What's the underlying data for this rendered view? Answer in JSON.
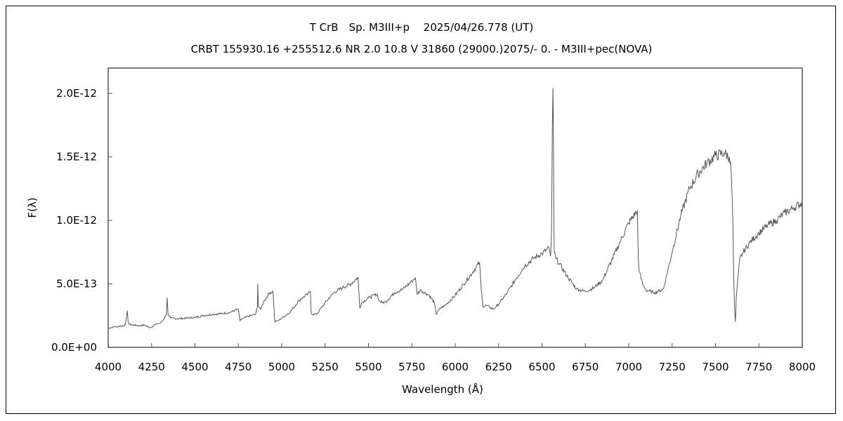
{
  "chart_data": {
    "type": "line",
    "title": "T CrB　Sp. M3III+p　 2025/04/26.778 (UT)",
    "subtitle": "CRBT 155930.16 +255512.6 NR 2.0 10.8 V 31860 (29000.)2075/-  0. - M3III+pec(NOVA)",
    "xlabel": "Wavelength (Å)",
    "ylabel": "F(λ)",
    "xlim": [
      4000,
      8000
    ],
    "ylim": [
      0,
      2.2e-12
    ],
    "x_ticks": [
      4000,
      4250,
      4500,
      4750,
      5000,
      5250,
      5500,
      5750,
      6000,
      6250,
      6500,
      6750,
      7000,
      7250,
      7500,
      7750,
      8000
    ],
    "y_ticks": [
      {
        "value": 0,
        "label": "0.0E+00"
      },
      {
        "value": 5e-13,
        "label": "5.0E-13"
      },
      {
        "value": 1e-12,
        "label": "1.0E-12"
      },
      {
        "value": 1.5e-12,
        "label": "1.5E-12"
      },
      {
        "value": 2e-12,
        "label": "2.0E-12"
      }
    ],
    "grid": false,
    "line_color": "#555555",
    "series": [
      {
        "x": [
          4000,
          4030,
          4060,
          4090,
          4100,
          4110,
          4115,
          4120,
          4150,
          4180,
          4210,
          4240,
          4260,
          4280,
          4300,
          4320,
          4335,
          4340,
          4345,
          4360,
          4400,
          4450,
          4500,
          4550,
          4600,
          4650,
          4700,
          4750,
          4760,
          4780,
          4820,
          4850,
          4860,
          4862,
          4865,
          4880,
          4900,
          4930,
          4950,
          4960,
          4975,
          4980,
          5000,
          5050,
          5100,
          5150,
          5165,
          5170,
          5180,
          5200,
          5250,
          5300,
          5350,
          5400,
          5430,
          5440,
          5450,
          5460,
          5500,
          5550,
          5560,
          5580,
          5600,
          5650,
          5700,
          5750,
          5770,
          5780,
          5800,
          5850,
          5880,
          5890,
          5900,
          5950,
          6000,
          6050,
          6100,
          6140,
          6150,
          6160,
          6180,
          6220,
          6250,
          6300,
          6350,
          6400,
          6450,
          6500,
          6540,
          6550,
          6555,
          6560,
          6563,
          6566,
          6570,
          6580,
          6600,
          6650,
          6700,
          6750,
          6800,
          6850,
          6900,
          6950,
          7000,
          7050,
          7055,
          7060,
          7080,
          7100,
          7150,
          7200,
          7250,
          7300,
          7350,
          7400,
          7450,
          7500,
          7550,
          7580,
          7590,
          7600,
          7605,
          7610,
          7615,
          7620,
          7640,
          7660,
          7700,
          7750,
          7800,
          7850,
          7900,
          7950,
          8000
        ],
        "y": [
          1.5e-13,
          1.6e-13,
          1.65e-13,
          1.7e-13,
          1.8e-13,
          2.9e-13,
          2e-13,
          1.8e-13,
          1.75e-13,
          1.7e-13,
          1.75e-13,
          1.55e-13,
          1.7e-13,
          1.85e-13,
          1.9e-13,
          2.2e-13,
          2.6e-13,
          3.9e-13,
          2.6e-13,
          2.3e-13,
          2.25e-13,
          2.3e-13,
          2.35e-13,
          2.5e-13,
          2.6e-13,
          2.65e-13,
          2.75e-13,
          3e-13,
          2.1e-13,
          2.3e-13,
          2.5e-13,
          2.6e-13,
          3.2e-13,
          5e-13,
          3.3e-13,
          3e-13,
          3.7e-13,
          4.3e-13,
          4.4e-13,
          2e-13,
          2.1e-13,
          2.1e-13,
          2.3e-13,
          2.8e-13,
          3.7e-13,
          4.2e-13,
          4.4e-13,
          2.7e-13,
          2.6e-13,
          2.6e-13,
          3.5e-13,
          4.3e-13,
          4.7e-13,
          5e-13,
          5.4e-13,
          5.5e-13,
          3.1e-13,
          3.5e-13,
          3.9e-13,
          4.2e-13,
          3.7e-13,
          3.5e-13,
          3.6e-13,
          4.3e-13,
          4.6e-13,
          5.2e-13,
          5.5e-13,
          4.2e-13,
          4.5e-13,
          4.1e-13,
          3.5e-13,
          2.6e-13,
          2.9e-13,
          3.4e-13,
          4.1e-13,
          5e-13,
          5.9e-13,
          6.7e-13,
          4.6e-13,
          3.2e-13,
          3.3e-13,
          3e-13,
          3.4e-13,
          4.3e-13,
          5.4e-13,
          6.4e-13,
          7e-13,
          7.4e-13,
          7.8e-13,
          7.2e-13,
          9e-13,
          1.75e-12,
          2.04e-12,
          1.65e-12,
          7.5e-13,
          7e-13,
          6.6e-13,
          5.5e-13,
          4.6e-13,
          4.4e-13,
          4.7e-13,
          5.3e-13,
          6.8e-13,
          8.3e-13,
          9.8e-13,
          1.08e-12,
          7e-13,
          6e-13,
          5e-13,
          4.5e-13,
          4.3e-13,
          4.6e-13,
          7.5e-13,
          1.04e-12,
          1.25e-12,
          1.37e-12,
          1.45e-12,
          1.51e-12,
          1.53e-12,
          1.5e-12,
          1.4e-12,
          1e-12,
          5.5e-13,
          3e-13,
          2e-13,
          4e-13,
          7e-13,
          7.5e-13,
          8.3e-13,
          9e-13,
          9.6e-13,
          1e-12,
          1.06e-12,
          1.1e-12,
          1.14e-12
        ]
      }
    ]
  }
}
